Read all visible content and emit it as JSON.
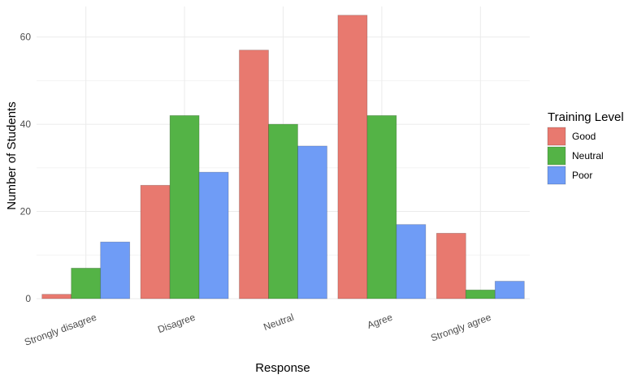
{
  "chart_data": {
    "type": "bar",
    "title": "",
    "xlabel": "Response",
    "ylabel": "Number of Students",
    "categories": [
      "Strongly disagree",
      "Disagree",
      "Neutral",
      "Agree",
      "Strongly agree"
    ],
    "series": [
      {
        "name": "Good",
        "color": "#e8796f",
        "values": [
          1,
          26,
          57,
          65,
          15
        ]
      },
      {
        "name": "Neutral",
        "color": "#54b346",
        "values": [
          7,
          42,
          40,
          42,
          2
        ]
      },
      {
        "name": "Poor",
        "color": "#6f9cf6",
        "values": [
          13,
          29,
          35,
          17,
          4
        ]
      }
    ],
    "ylim": [
      0,
      67
    ],
    "yticks": [
      0,
      20,
      40,
      60
    ],
    "grid": true,
    "legend": {
      "title": "Training Level",
      "position": "right"
    }
  }
}
